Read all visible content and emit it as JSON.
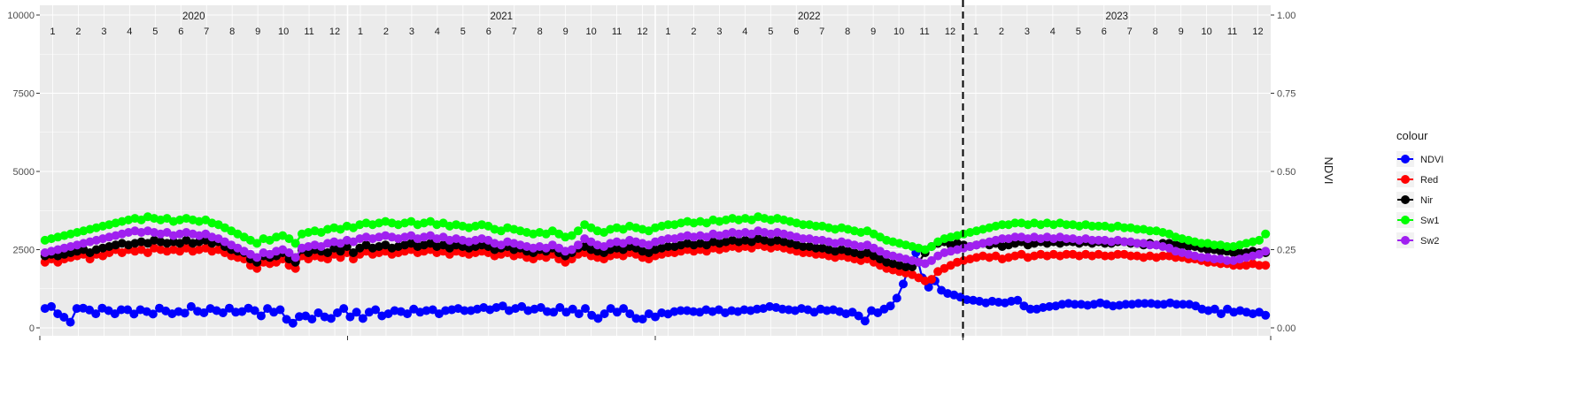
{
  "chart_data": {
    "type": "line",
    "title": "",
    "xlabel": "",
    "ylabel": "",
    "y2label": "NDVI",
    "ylim": [
      0,
      10000
    ],
    "y_ticks": [
      0,
      2500,
      5000,
      7500,
      10000
    ],
    "y2lim": [
      0,
      1
    ],
    "y2_ticks": [
      "0.00",
      "0.25",
      "0.50",
      "0.75",
      "1.00"
    ],
    "years": [
      "2020",
      "2021",
      "2022",
      "2023"
    ],
    "months": [
      "1",
      "2",
      "3",
      "4",
      "5",
      "6",
      "7",
      "8",
      "9",
      "10",
      "11",
      "12"
    ],
    "change_point": "2022-12-31",
    "legend": {
      "title": "colour",
      "position": "right"
    },
    "series": [
      {
        "name": "NDVI",
        "color": "#0000FF",
        "axis": "right",
        "values": [
          0.062,
          0.068,
          0.045,
          0.034,
          0.018,
          0.062,
          0.063,
          0.057,
          0.045,
          0.063,
          0.055,
          0.045,
          0.058,
          0.058,
          0.044,
          0.058,
          0.052,
          0.044,
          0.063,
          0.054,
          0.045,
          0.052,
          0.047,
          0.068,
          0.053,
          0.048,
          0.062,
          0.055,
          0.048,
          0.063,
          0.05,
          0.052,
          0.063,
          0.055,
          0.038,
          0.062,
          0.05,
          0.058,
          0.027,
          0.015,
          0.036,
          0.038,
          0.028,
          0.048,
          0.035,
          0.03,
          0.048,
          0.062,
          0.035,
          0.05,
          0.03,
          0.05,
          0.058,
          0.038,
          0.045,
          0.055,
          0.052,
          0.045,
          0.06,
          0.05,
          0.055,
          0.058,
          0.045,
          0.055,
          0.058,
          0.062,
          0.055,
          0.055,
          0.06,
          0.065,
          0.058,
          0.065,
          0.07,
          0.055,
          0.062,
          0.068,
          0.055,
          0.06,
          0.065,
          0.052,
          0.05,
          0.065,
          0.05,
          0.06,
          0.045,
          0.062,
          0.04,
          0.03,
          0.045,
          0.062,
          0.05,
          0.062,
          0.045,
          0.03,
          0.028,
          0.045,
          0.035,
          0.048,
          0.044,
          0.052,
          0.055,
          0.055,
          0.052,
          0.05,
          0.058,
          0.052,
          0.058,
          0.048,
          0.055,
          0.052,
          0.058,
          0.055,
          0.06,
          0.062,
          0.068,
          0.065,
          0.06,
          0.058,
          0.055,
          0.062,
          0.058,
          0.05,
          0.06,
          0.055,
          0.058,
          0.052,
          0.045,
          0.05,
          0.038,
          0.022,
          0.055,
          0.048,
          0.06,
          0.07,
          0.095,
          0.14,
          0.2,
          0.24,
          0.16,
          0.13,
          0.15,
          0.12,
          0.11,
          0.105,
          0.098,
          0.09,
          0.088,
          0.085,
          0.08,
          0.085,
          0.082,
          0.08,
          0.085,
          0.088,
          0.07,
          0.06,
          0.06,
          0.065,
          0.068,
          0.07,
          0.075,
          0.078,
          0.075,
          0.075,
          0.072,
          0.075,
          0.08,
          0.075,
          0.07,
          0.072,
          0.075,
          0.075,
          0.078,
          0.078,
          0.078,
          0.075,
          0.075,
          0.08,
          0.075,
          0.075,
          0.075,
          0.07,
          0.06,
          0.055,
          0.06,
          0.045,
          0.06,
          0.05,
          0.055,
          0.05,
          0.045,
          0.05,
          0.04
        ]
      },
      {
        "name": "Red",
        "color": "#FF0000",
        "axis": "left",
        "values": [
          2100,
          2200,
          2100,
          2200,
          2250,
          2300,
          2350,
          2200,
          2350,
          2300,
          2400,
          2500,
          2400,
          2500,
          2450,
          2500,
          2400,
          2550,
          2500,
          2450,
          2500,
          2450,
          2550,
          2450,
          2500,
          2550,
          2450,
          2500,
          2400,
          2300,
          2250,
          2200,
          2000,
          1900,
          2100,
          2050,
          2100,
          2200,
          2000,
          1900,
          2300,
          2200,
          2300,
          2250,
          2200,
          2350,
          2250,
          2400,
          2200,
          2350,
          2450,
          2350,
          2400,
          2450,
          2350,
          2400,
          2450,
          2500,
          2400,
          2450,
          2500,
          2400,
          2450,
          2350,
          2450,
          2400,
          2350,
          2400,
          2450,
          2400,
          2300,
          2350,
          2400,
          2300,
          2350,
          2250,
          2200,
          2300,
          2250,
          2350,
          2200,
          2100,
          2200,
          2350,
          2400,
          2300,
          2250,
          2200,
          2300,
          2350,
          2300,
          2400,
          2350,
          2250,
          2200,
          2300,
          2350,
          2400,
          2400,
          2450,
          2500,
          2450,
          2500,
          2450,
          2550,
          2500,
          2550,
          2600,
          2550,
          2600,
          2550,
          2650,
          2600,
          2550,
          2600,
          2550,
          2500,
          2450,
          2400,
          2400,
          2350,
          2350,
          2300,
          2250,
          2300,
          2250,
          2200,
          2150,
          2200,
          2100,
          2000,
          1900,
          1850,
          1800,
          1750,
          1700,
          1600,
          1500,
          1550,
          1800,
          1900,
          2000,
          2100,
          2150,
          2200,
          2250,
          2300,
          2250,
          2300,
          2200,
          2250,
          2300,
          2350,
          2250,
          2300,
          2350,
          2300,
          2350,
          2300,
          2350,
          2350,
          2300,
          2350,
          2300,
          2350,
          2300,
          2300,
          2350,
          2350,
          2300,
          2300,
          2250,
          2300,
          2250,
          2300,
          2300,
          2250,
          2250,
          2200,
          2200,
          2150,
          2100,
          2100,
          2050,
          2050,
          2000,
          2000,
          2000,
          2050,
          2000,
          2000
        ]
      },
      {
        "name": "Nir",
        "color": "#000000",
        "axis": "left",
        "values": [
          2300,
          2350,
          2300,
          2350,
          2400,
          2450,
          2500,
          2400,
          2500,
          2550,
          2600,
          2650,
          2700,
          2650,
          2700,
          2750,
          2700,
          2800,
          2750,
          2700,
          2750,
          2700,
          2800,
          2700,
          2750,
          2800,
          2700,
          2750,
          2600,
          2500,
          2450,
          2400,
          2200,
          2100,
          2300,
          2250,
          2300,
          2400,
          2200,
          2100,
          2500,
          2400,
          2500,
          2450,
          2400,
          2550,
          2450,
          2600,
          2400,
          2550,
          2650,
          2550,
          2600,
          2650,
          2550,
          2600,
          2650,
          2700,
          2600,
          2650,
          2700,
          2600,
          2650,
          2550,
          2650,
          2600,
          2550,
          2600,
          2650,
          2600,
          2500,
          2550,
          2600,
          2500,
          2550,
          2450,
          2400,
          2500,
          2450,
          2550,
          2400,
          2300,
          2400,
          2550,
          2600,
          2500,
          2450,
          2400,
          2500,
          2550,
          2500,
          2600,
          2550,
          2450,
          2400,
          2500,
          2550,
          2600,
          2600,
          2650,
          2700,
          2650,
          2700,
          2650,
          2750,
          2700,
          2750,
          2800,
          2750,
          2800,
          2750,
          2850,
          2800,
          2750,
          2800,
          2750,
          2700,
          2650,
          2600,
          2600,
          2550,
          2550,
          2500,
          2450,
          2500,
          2450,
          2400,
          2350,
          2400,
          2300,
          2200,
          2100,
          2050,
          2000,
          1950,
          1950,
          2100,
          2400,
          2600,
          2700,
          2750,
          2650,
          2700,
          2650,
          2600,
          2650,
          2700,
          2650,
          2700,
          2600,
          2650,
          2700,
          2750,
          2650,
          2700,
          2750,
          2700,
          2750,
          2700,
          2750,
          2750,
          2700,
          2750,
          2700,
          2750,
          2700,
          2700,
          2750,
          2750,
          2700,
          2700,
          2650,
          2700,
          2650,
          2700,
          2700,
          2650,
          2650,
          2600,
          2600,
          2550,
          2500,
          2500,
          2450,
          2450,
          2400,
          2400,
          2400,
          2450,
          2400,
          2400
        ]
      },
      {
        "name": "Sw1",
        "color": "#00FF00",
        "axis": "left",
        "values": [
          2800,
          2850,
          2900,
          2950,
          3000,
          3050,
          3100,
          3150,
          3200,
          3250,
          3300,
          3350,
          3400,
          3450,
          3500,
          3450,
          3550,
          3500,
          3450,
          3500,
          3400,
          3450,
          3500,
          3450,
          3400,
          3450,
          3350,
          3300,
          3200,
          3100,
          3000,
          2900,
          2800,
          2700,
          2850,
          2800,
          2900,
          2950,
          2850,
          2700,
          3000,
          3050,
          3100,
          3050,
          3150,
          3200,
          3150,
          3250,
          3200,
          3300,
          3350,
          3300,
          3350,
          3400,
          3350,
          3300,
          3350,
          3400,
          3300,
          3350,
          3400,
          3300,
          3350,
          3250,
          3300,
          3250,
          3200,
          3250,
          3300,
          3250,
          3150,
          3100,
          3200,
          3150,
          3100,
          3050,
          3000,
          3050,
          3000,
          3100,
          3000,
          2900,
          2950,
          3100,
          3300,
          3200,
          3100,
          3050,
          3150,
          3200,
          3150,
          3250,
          3200,
          3150,
          3100,
          3200,
          3250,
          3300,
          3300,
          3350,
          3400,
          3350,
          3400,
          3350,
          3450,
          3400,
          3450,
          3500,
          3450,
          3500,
          3450,
          3550,
          3500,
          3450,
          3500,
          3450,
          3400,
          3350,
          3300,
          3300,
          3250,
          3250,
          3200,
          3150,
          3200,
          3150,
          3100,
          3050,
          3100,
          3000,
          2900,
          2800,
          2750,
          2700,
          2650,
          2600,
          2550,
          2500,
          2600,
          2750,
          2850,
          2900,
          2950,
          3000,
          3050,
          3100,
          3150,
          3200,
          3250,
          3300,
          3300,
          3350,
          3350,
          3300,
          3350,
          3300,
          3350,
          3300,
          3350,
          3300,
          3300,
          3250,
          3300,
          3250,
          3250,
          3250,
          3200,
          3250,
          3200,
          3200,
          3150,
          3150,
          3100,
          3100,
          3050,
          3000,
          2900,
          2850,
          2800,
          2750,
          2700,
          2700,
          2650,
          2650,
          2600,
          2600,
          2650,
          2700,
          2750,
          2800,
          3000
        ]
      },
      {
        "name": "Sw2",
        "color": "#A020F0",
        "axis": "left",
        "values": [
          2400,
          2450,
          2500,
          2550,
          2600,
          2650,
          2700,
          2750,
          2800,
          2850,
          2900,
          2950,
          3000,
          3050,
          3100,
          3050,
          3100,
          3050,
          3000,
          3050,
          2950,
          3000,
          3050,
          3000,
          2950,
          3000,
          2900,
          2850,
          2750,
          2650,
          2550,
          2450,
          2350,
          2250,
          2400,
          2350,
          2450,
          2500,
          2400,
          2250,
          2550,
          2600,
          2650,
          2600,
          2700,
          2750,
          2700,
          2800,
          2750,
          2850,
          2900,
          2850,
          2900,
          2950,
          2900,
          2850,
          2900,
          2950,
          2850,
          2900,
          2950,
          2850,
          2900,
          2800,
          2850,
          2800,
          2750,
          2800,
          2850,
          2800,
          2700,
          2650,
          2750,
          2700,
          2650,
          2600,
          2550,
          2600,
          2550,
          2650,
          2550,
          2450,
          2500,
          2650,
          2850,
          2750,
          2650,
          2600,
          2700,
          2750,
          2700,
          2800,
          2750,
          2700,
          2650,
          2750,
          2800,
          2850,
          2850,
          2900,
          2950,
          2900,
          2950,
          2900,
          3000,
          2950,
          3000,
          3050,
          3000,
          3050,
          3000,
          3100,
          3050,
          3000,
          3050,
          3000,
          2950,
          2900,
          2850,
          2850,
          2800,
          2800,
          2750,
          2700,
          2750,
          2700,
          2650,
          2600,
          2650,
          2550,
          2450,
          2350,
          2300,
          2250,
          2200,
          2150,
          2100,
          2050,
          2150,
          2300,
          2400,
          2450,
          2500,
          2550,
          2600,
          2650,
          2700,
          2750,
          2800,
          2850,
          2850,
          2900,
          2900,
          2850,
          2900,
          2850,
          2900,
          2850,
          2900,
          2850,
          2850,
          2800,
          2850,
          2800,
          2800,
          2800,
          2750,
          2800,
          2750,
          2750,
          2700,
          2700,
          2650,
          2650,
          2600,
          2550,
          2450,
          2400,
          2350,
          2300,
          2250,
          2250,
          2200,
          2200,
          2150,
          2150,
          2200,
          2250,
          2300,
          2350,
          2450
        ]
      }
    ]
  }
}
